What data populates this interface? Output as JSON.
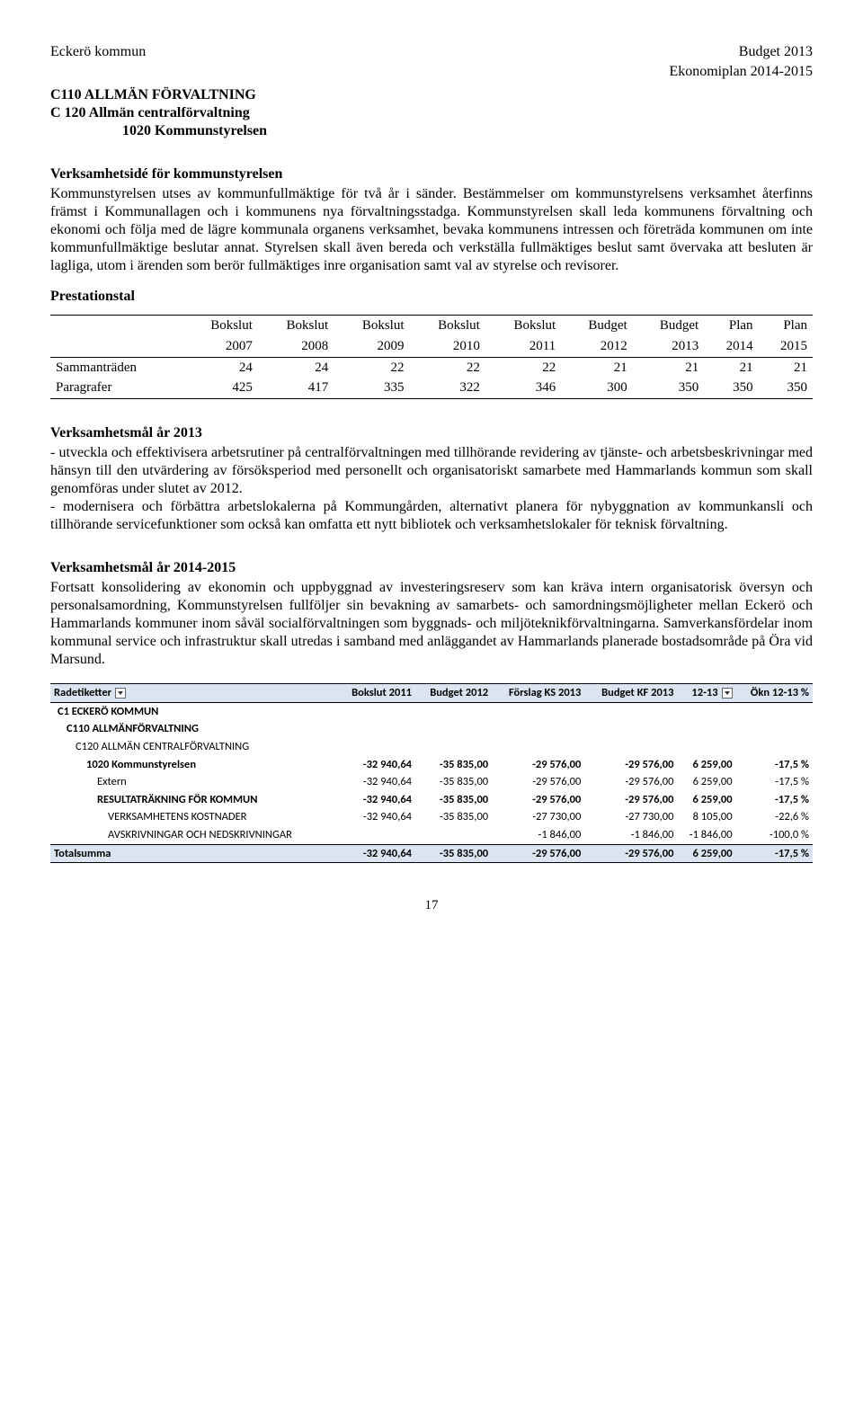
{
  "header": {
    "left": "Eckerö kommun",
    "right_top": "Budget 2013",
    "right_sub": "Ekonomiplan 2014-2015"
  },
  "section_titles": {
    "l1": "C110 ALLMÄN FÖRVALTNING",
    "l2": "C 120 Allmän centralförvaltning",
    "l3": "1020 Kommunstyrelsen"
  },
  "verksamhetside": {
    "title": "Verksamhetsidé för kommunstyrelsen",
    "body": "Kommunstyrelsen utses av kommunfullmäktige för två år i sänder. Bestämmelser om kommunstyrelsens verksamhet återfinns främst i Kommunallagen och i kommunens nya förvaltningsstadga. Kommunstyrelsen skall leda kommunens förvaltning och ekonomi och följa med de lägre kommunala organens verksamhet, bevaka kommunens intressen och företräda kommunen om inte kommunfullmäktige beslutar annat. Styrelsen skall även bereda och verkställa fullmäktiges beslut samt övervaka att besluten är lagliga, utom i ärenden som berör fullmäktiges inre organisation samt val av styrelse och revisorer."
  },
  "prestationstal": {
    "label": "Prestationstal",
    "col_heads_top": [
      "",
      "Bokslut",
      "Bokslut",
      "Bokslut",
      "Bokslut",
      "Bokslut",
      "Budget",
      "Budget",
      "Plan",
      "Plan"
    ],
    "col_heads_years": [
      "",
      "2007",
      "2008",
      "2009",
      "2010",
      "2011",
      "2012",
      "2013",
      "2014",
      "2015"
    ],
    "rows": [
      {
        "label": "Sammanträden",
        "vals": [
          "24",
          "24",
          "22",
          "22",
          "22",
          "21",
          "21",
          "21",
          "21"
        ]
      },
      {
        "label": "Paragrafer",
        "vals": [
          "425",
          "417",
          "335",
          "322",
          "346",
          "300",
          "350",
          "350",
          "350"
        ]
      }
    ]
  },
  "mal2013": {
    "title": "Verksamhetsmål år 2013",
    "p1": "- utveckla och effektivisera arbetsrutiner på centralförvaltningen med tillhörande revidering av tjänste- och arbetsbeskrivningar med hänsyn till den utvärdering av försöksperiod med personellt och organisatoriskt samarbete med Hammarlands kommun som skall genomföras under slutet av 2012.",
    "p2": "- modernisera och förbättra arbetslokalerna på Kommungården, alternativt planera för nybyggnation av kommunkansli och tillhörande servicefunktioner som också kan omfatta ett nytt bibliotek och verksamhetslokaler för teknisk förvaltning."
  },
  "mal2014": {
    "title": "Verksamhetsmål år 2014-2015",
    "body": "Fortsatt konsolidering av ekonomin och uppbyggnad av investeringsreserv som kan kräva intern organisatorisk översyn och personalsamordning, Kommunstyrelsen fullföljer sin bevakning av samarbets- och samordningsmöjligheter mellan Eckerö och Hammarlands kommuner inom såväl socialförvaltningen som byggnads- och miljöteknikförvaltningarna. Samverkansfördelar inom kommunal service och infrastruktur skall utredas i samband med anläggandet av Hammarlands planerade bostadsområde på Öra vid Marsund."
  },
  "budget_table": {
    "headers": [
      "Radetiketter",
      "Bokslut 2011",
      "Budget 2012",
      "Förslag KS 2013",
      "Budget KF 2013",
      "12-13",
      "Ökn 12-13 %"
    ],
    "rows": [
      {
        "indent": 1,
        "bold": true,
        "label": "C1  ECKERÖ KOMMUN",
        "vals": [
          "",
          "",
          "",
          "",
          "",
          ""
        ]
      },
      {
        "indent": 2,
        "bold": true,
        "label": "C110   ALLMÄNFÖRVALTNING",
        "vals": [
          "",
          "",
          "",
          "",
          "",
          ""
        ]
      },
      {
        "indent": 3,
        "bold": false,
        "label": "C120   ALLMÄN CENTRALFÖRVALTNING",
        "vals": [
          "",
          "",
          "",
          "",
          "",
          ""
        ]
      },
      {
        "indent": 4,
        "bold": true,
        "label": "1020   Kommunstyrelsen",
        "vals": [
          "-32 940,64",
          "-35 835,00",
          "-29 576,00",
          "-29 576,00",
          "6 259,00",
          "-17,5 %"
        ]
      },
      {
        "indent": 5,
        "bold": false,
        "label": "Extern",
        "vals": [
          "-32 940,64",
          "-35 835,00",
          "-29 576,00",
          "-29 576,00",
          "6 259,00",
          "-17,5 %"
        ]
      },
      {
        "indent": 5,
        "bold": true,
        "label": "RESULTATRÄKNING FÖR KOMMUN",
        "vals": [
          "-32 940,64",
          "-35 835,00",
          "-29 576,00",
          "-29 576,00",
          "6 259,00",
          "-17,5 %"
        ]
      },
      {
        "indent": 6,
        "bold": false,
        "label": "VERKSAMHETENS KOSTNADER",
        "vals": [
          "-32 940,64",
          "-35 835,00",
          "-27 730,00",
          "-27 730,00",
          "8 105,00",
          "-22,6 %"
        ]
      },
      {
        "indent": 6,
        "bold": false,
        "label": "AVSKRIVNINGAR OCH NEDSKRIVNINGAR",
        "vals": [
          "",
          "",
          "-1 846,00",
          "-1 846,00",
          "-1 846,00",
          "-100,0 %"
        ]
      }
    ],
    "total": {
      "label": "Totalsumma",
      "vals": [
        "-32 940,64",
        "-35 835,00",
        "-29 576,00",
        "-29 576,00",
        "6 259,00",
        "-17,5 %"
      ]
    }
  },
  "page_number": "17"
}
